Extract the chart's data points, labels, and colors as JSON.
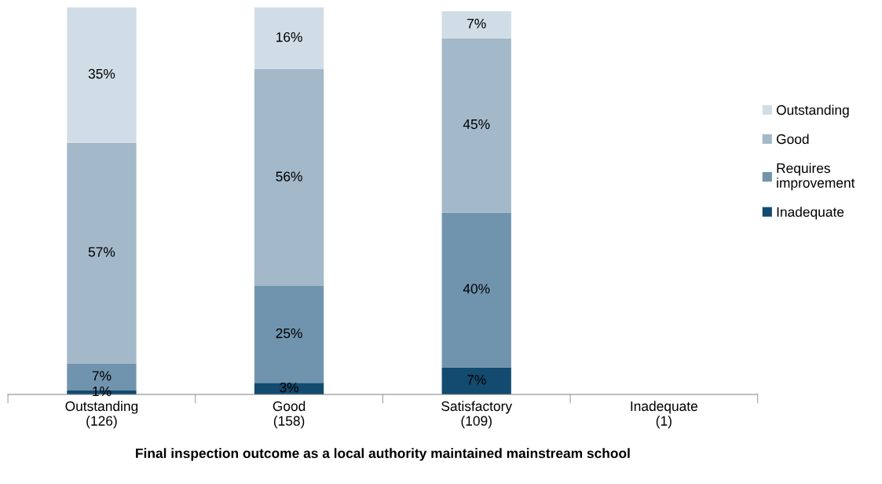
{
  "chart_data": {
    "type": "bar",
    "stacked": true,
    "xlabel": "Final inspection outcome as a local authority maintained mainstream school",
    "categories": [
      "Outstanding\n(126)",
      "Good\n(158)",
      "Satisfactory\n(109)",
      "Inadequate\n(1)"
    ],
    "series": [
      {
        "name": "Inadequate",
        "color": "#124b6f",
        "values": [
          1,
          3,
          7,
          null
        ],
        "value_labels": [
          "1%",
          "3%",
          "7%",
          null
        ]
      },
      {
        "name": "Requires\nimprovement",
        "color": "#7094ae",
        "values": [
          7,
          25,
          40,
          null
        ],
        "value_labels": [
          "7%",
          "25%",
          "40%",
          null
        ]
      },
      {
        "name": "Good",
        "color": "#a3b8c8",
        "values": [
          57,
          56,
          45,
          null
        ],
        "value_labels": [
          "57%",
          "56%",
          "45%",
          null
        ]
      },
      {
        "name": "Outstanding",
        "color": "#d0dde6",
        "values": [
          35,
          16,
          7,
          null
        ],
        "value_labels": [
          "35%",
          "16%",
          "7%",
          null
        ]
      }
    ],
    "ylim": [
      0,
      100
    ],
    "tick_labels": "x",
    "legend": "right",
    "grid": false
  }
}
